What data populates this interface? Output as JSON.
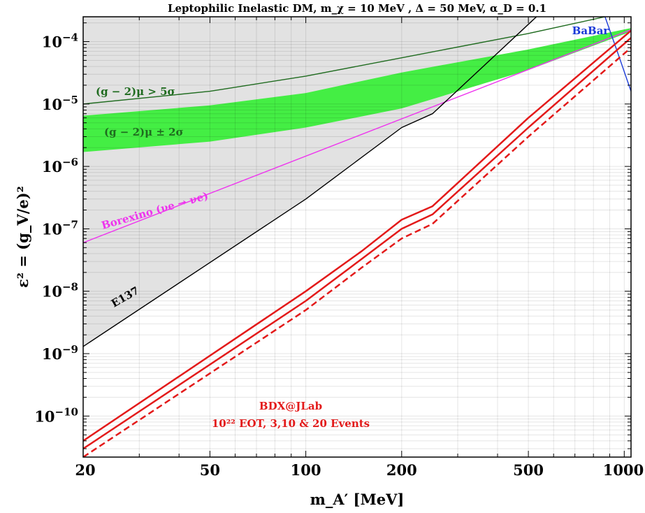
{
  "chart_data": {
    "type": "line",
    "title": "Leptophilic Inelastic DM,  m_χ = 10 MeV ,  Δ = 50 MeV,    α_D = 0.1",
    "xlabel": "m_A′ [MeV]",
    "ylabel": "ε² = (g_V/e)²",
    "x_scale": "log",
    "y_scale": "log",
    "xlim": [
      20,
      1050
    ],
    "ylim": [
      2.2e-11,
      0.00025
    ],
    "grid": true,
    "x_ticks": [
      {
        "value": 20,
        "label": "20"
      },
      {
        "value": 50,
        "label": "50"
      },
      {
        "value": 100,
        "label": "100"
      },
      {
        "value": 200,
        "label": "200"
      },
      {
        "value": 500,
        "label": "500"
      },
      {
        "value": 1000,
        "label": "1000"
      }
    ],
    "y_ticks": [
      {
        "value": 0.0001,
        "base": "10",
        "exp": "−4"
      },
      {
        "value": 1e-05,
        "base": "10",
        "exp": "−5"
      },
      {
        "value": 1e-06,
        "base": "10",
        "exp": "−6"
      },
      {
        "value": 1e-07,
        "base": "10",
        "exp": "−7"
      },
      {
        "value": 1e-08,
        "base": "10",
        "exp": "−8"
      },
      {
        "value": 1e-09,
        "base": "10",
        "exp": "−9"
      },
      {
        "value": 1e-10,
        "base": "10",
        "exp": "−10"
      }
    ],
    "shaded_regions": [
      {
        "name": "E137",
        "color": "#e2e2e2",
        "boundary": [
          [
            20,
            1.3e-09
          ],
          [
            100,
            3e-07
          ],
          [
            200,
            4.2e-06
          ],
          [
            250,
            7e-06
          ],
          [
            530,
            0.00025
          ]
        ]
      },
      {
        "name": "(g−2)_μ ± 2σ",
        "color": "#44ee44",
        "upper": [
          [
            20,
            6.5e-06
          ],
          [
            50,
            9.5e-06
          ],
          [
            100,
            1.5e-05
          ],
          [
            200,
            3.2e-05
          ],
          [
            500,
            7.5e-05
          ],
          [
            1050,
            0.000165
          ]
        ],
        "lower": [
          [
            20,
            1.7e-06
          ],
          [
            50,
            2.5e-06
          ],
          [
            100,
            4.2e-06
          ],
          [
            200,
            8.5e-06
          ],
          [
            500,
            3.5e-05
          ],
          [
            1050,
            0.000145
          ]
        ]
      }
    ],
    "series": [
      {
        "name": "(g−2)_μ > 5σ",
        "color": "#1f6b1f",
        "style": "solid",
        "points": [
          [
            20,
            1e-05
          ],
          [
            50,
            1.6e-05
          ],
          [
            100,
            2.8e-05
          ],
          [
            200,
            5.5e-05
          ],
          [
            500,
            0.000135
          ],
          [
            870,
            0.00025
          ]
        ]
      },
      {
        "name": "Borexino (νe → νe)",
        "color": "#ee33ee",
        "style": "solid",
        "points": [
          [
            20,
            6e-08
          ],
          [
            1050,
            0.000155
          ]
        ]
      },
      {
        "name": "E137",
        "color": "#000000",
        "style": "solid",
        "points": [
          [
            20,
            1.3e-09
          ],
          [
            100,
            3e-07
          ],
          [
            200,
            4.2e-06
          ],
          [
            250,
            7e-06
          ],
          [
            530,
            0.00025
          ]
        ]
      },
      {
        "name": "BaBar",
        "color": "#1a3ad8",
        "style": "solid",
        "points": [
          [
            870,
            0.00025
          ],
          [
            950,
            7e-05
          ],
          [
            1050,
            1.6e-05
          ]
        ]
      },
      {
        "name": "3 events",
        "color": "#e31a1a",
        "style": "solid",
        "points": [
          [
            20,
            4e-11
          ],
          [
            100,
            1e-08
          ],
          [
            150,
            4.4e-08
          ],
          [
            200,
            1.4e-07
          ],
          [
            250,
            2.3e-07
          ],
          [
            500,
            6e-06
          ],
          [
            1050,
            0.00015
          ]
        ]
      },
      {
        "name": "10 events",
        "color": "#e31a1a",
        "style": "solid",
        "points": [
          [
            20,
            3e-11
          ],
          [
            100,
            7e-09
          ],
          [
            150,
            3.3e-08
          ],
          [
            200,
            1e-07
          ],
          [
            250,
            1.7e-07
          ],
          [
            500,
            4.2e-06
          ],
          [
            1050,
            0.000115
          ]
        ]
      },
      {
        "name": "20 events",
        "color": "#e31a1a",
        "style": "dashed",
        "points": [
          [
            20,
            2.2e-11
          ],
          [
            100,
            5e-09
          ],
          [
            150,
            2.4e-08
          ],
          [
            200,
            7e-08
          ],
          [
            250,
            1.2e-07
          ],
          [
            500,
            3e-06
          ],
          [
            1050,
            8e-05
          ]
        ]
      }
    ],
    "annotations": [
      {
        "key": "babar",
        "text": "BaBar",
        "color": "#1a3ad8"
      },
      {
        "key": "g2_5sigma",
        "text": "(g − 2)μ > 5σ",
        "color": "#1f6b1f"
      },
      {
        "key": "g2_2sigma",
        "text": "(g − 2)μ ± 2σ",
        "color": "#1f6b1f"
      },
      {
        "key": "borexino",
        "text": "Borexino (νe → νe)",
        "color": "#ee33ee"
      },
      {
        "key": "e137",
        "text": "E137",
        "color": "#000000"
      },
      {
        "key": "bdx_1",
        "text": "BDX@JLab",
        "color": "#e31a1a"
      },
      {
        "key": "bdx_2",
        "text": "10²² EOT, 3,10 & 20 Events",
        "color": "#e31a1a"
      }
    ]
  }
}
